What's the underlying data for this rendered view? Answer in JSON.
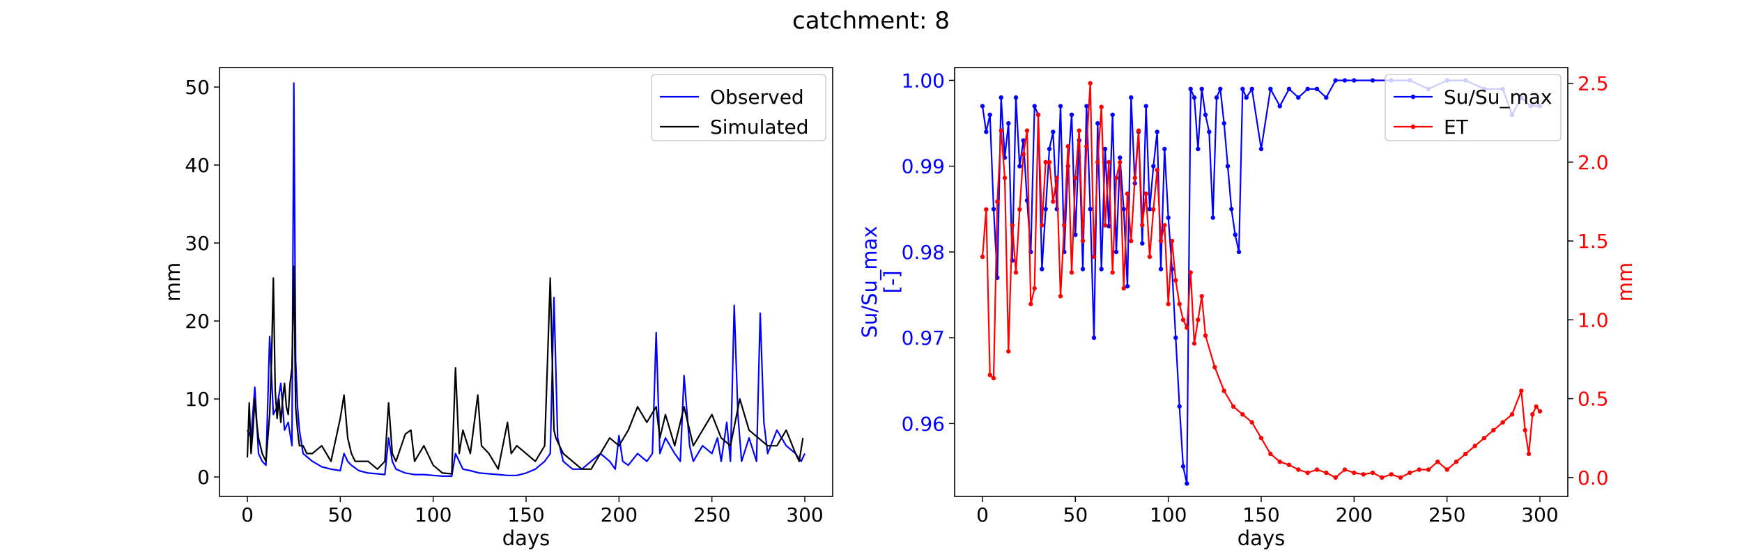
{
  "figure": {
    "title": "catchment: 8"
  },
  "chart_data": [
    {
      "type": "line",
      "title": "",
      "xlabel": "days",
      "ylabel": "mm",
      "xlim": [
        -15,
        315
      ],
      "ylim": [
        -2.5,
        52.5
      ],
      "xticks": [
        0,
        50,
        100,
        150,
        200,
        250,
        300
      ],
      "yticks": [
        0,
        10,
        20,
        30,
        40,
        50
      ],
      "legend_position": "top-right",
      "series": [
        {
          "name": "Observed",
          "color": "#0000ff",
          "x": [
            0,
            2,
            4,
            6,
            8,
            10,
            12,
            14,
            16,
            18,
            20,
            22,
            24,
            25,
            26,
            27,
            28,
            30,
            35,
            40,
            45,
            50,
            52,
            54,
            56,
            60,
            65,
            70,
            74,
            76,
            78,
            80,
            85,
            90,
            95,
            100,
            105,
            110,
            112,
            114,
            116,
            120,
            125,
            130,
            135,
            140,
            145,
            150,
            155,
            160,
            163,
            165,
            167,
            170,
            175,
            180,
            185,
            190,
            195,
            198,
            200,
            202,
            205,
            210,
            215,
            218,
            220,
            222,
            225,
            230,
            233,
            235,
            238,
            240,
            245,
            250,
            253,
            255,
            258,
            260,
            262,
            264,
            266,
            270,
            274,
            276,
            278,
            280,
            285,
            290,
            295,
            298,
            300
          ],
          "y": [
            6,
            5,
            11.5,
            3,
            2,
            1.5,
            18,
            8,
            9,
            12,
            6,
            7,
            4,
            50.5,
            15,
            9,
            6,
            3,
            2,
            1.3,
            1,
            0.8,
            3,
            2,
            1.5,
            0.8,
            0.5,
            0.4,
            0.3,
            5,
            2,
            1,
            0.5,
            0.3,
            0.3,
            0.2,
            0.1,
            0.1,
            3,
            2,
            1,
            0.8,
            0.5,
            0.4,
            0.3,
            0.2,
            0.2,
            0.5,
            1,
            2,
            3,
            23,
            5,
            2,
            1,
            1,
            2,
            3,
            2,
            1,
            5.3,
            2,
            1.5,
            3,
            2,
            3,
            18.5,
            3,
            5,
            3,
            2,
            13,
            4,
            2,
            4,
            3,
            5,
            2,
            7,
            2,
            22,
            8,
            2,
            5,
            2,
            21,
            7,
            3,
            6,
            4,
            3,
            2,
            3
          ]
        },
        {
          "name": "Simulated",
          "color": "#000000",
          "x": [
            0,
            1,
            2,
            3,
            4,
            5,
            6,
            8,
            10,
            12,
            13,
            14,
            15,
            16,
            17,
            18,
            19,
            20,
            21,
            22,
            23,
            24,
            25,
            26,
            27,
            28,
            30,
            32,
            35,
            40,
            45,
            50,
            52,
            54,
            56,
            58,
            60,
            65,
            70,
            74,
            76,
            78,
            80,
            85,
            88,
            90,
            95,
            100,
            105,
            110,
            112,
            114,
            116,
            120,
            124,
            126,
            130,
            135,
            140,
            142,
            145,
            150,
            155,
            160,
            163,
            165,
            166,
            168,
            170,
            175,
            180,
            185,
            190,
            195,
            200,
            205,
            210,
            215,
            220,
            222,
            225,
            230,
            235,
            240,
            245,
            250,
            255,
            260,
            265,
            270,
            275,
            280,
            285,
            290,
            295,
            297,
            299
          ],
          "y": [
            2.5,
            9.5,
            3,
            6,
            10,
            7,
            5,
            3,
            2,
            8,
            15,
            25.5,
            11,
            7.5,
            10,
            7,
            10,
            12,
            9,
            8,
            12,
            14,
            27,
            9,
            6,
            4,
            4,
            3,
            3,
            4,
            2,
            7.5,
            10.5,
            5,
            3,
            2,
            2,
            2,
            1,
            2,
            9.5,
            3,
            2,
            5.5,
            6,
            2,
            4,
            1.5,
            0.5,
            0.4,
            14,
            3,
            6,
            3,
            10.5,
            4,
            3,
            1,
            7,
            3,
            4,
            3,
            2,
            4,
            25.5,
            6,
            5,
            4,
            3,
            2,
            1,
            1,
            3,
            5,
            4,
            6,
            9,
            7,
            9,
            5,
            8,
            4,
            9,
            4,
            6,
            8,
            5,
            4,
            10,
            6,
            5,
            4,
            4,
            6,
            3,
            2,
            5
          ]
        }
      ]
    },
    {
      "type": "line",
      "title": "",
      "xlabel": "days",
      "ylabel": "Su/Su_max\n[-]",
      "ylabel_color": "#0000ff",
      "xlim": [
        -15,
        315
      ],
      "ylim": [
        0.9515,
        1.0015
      ],
      "xticks": [
        0,
        50,
        100,
        150,
        200,
        250,
        300
      ],
      "yticks": [
        0.96,
        0.97,
        0.98,
        0.99,
        1.0
      ],
      "y2label": "mm",
      "y2label_color": "#ff0000",
      "y2lim": [
        -0.12,
        2.6
      ],
      "y2ticks": [
        0.0,
        0.5,
        1.0,
        1.5,
        2.0,
        2.5
      ],
      "legend_position": "top-right",
      "series": [
        {
          "name": "Su/Su_max",
          "color": "#0000ff",
          "axis": "left",
          "x": [
            0,
            2,
            4,
            6,
            8,
            10,
            12,
            14,
            16,
            18,
            20,
            22,
            24,
            26,
            28,
            30,
            32,
            34,
            36,
            38,
            40,
            42,
            44,
            46,
            48,
            50,
            52,
            54,
            56,
            58,
            60,
            62,
            64,
            66,
            68,
            70,
            72,
            74,
            76,
            78,
            80,
            82,
            84,
            86,
            88,
            90,
            92,
            94,
            96,
            98,
            100,
            102,
            104,
            106,
            108,
            110,
            112,
            114,
            116,
            118,
            120,
            122,
            124,
            126,
            128,
            130,
            132,
            134,
            136,
            138,
            140,
            142,
            145,
            150,
            155,
            160,
            165,
            170,
            175,
            180,
            185,
            190,
            195,
            200,
            210,
            220,
            230,
            240,
            250,
            260,
            270,
            280,
            285,
            290,
            295,
            300
          ],
          "y": [
            0.997,
            0.994,
            0.996,
            0.985,
            0.977,
            0.998,
            0.991,
            0.995,
            0.979,
            0.998,
            0.99,
            0.993,
            0.986,
            0.98,
            0.997,
            0.996,
            0.978,
            0.985,
            0.992,
            0.994,
            0.985,
            0.997,
            0.98,
            0.99,
            0.996,
            0.982,
            0.993,
            0.978,
            0.997,
            0.985,
            0.97,
            0.995,
            0.978,
            0.992,
            0.983,
            0.996,
            0.98,
            0.991,
            0.985,
            0.976,
            0.998,
            0.988,
            0.994,
            0.981,
            0.997,
            0.985,
            0.99,
            0.994,
            0.978,
            0.992,
            0.984,
            0.978,
            0.97,
            0.962,
            0.955,
            0.953,
            0.999,
            0.998,
            0.992,
            0.999,
            0.996,
            0.994,
            0.984,
            0.998,
            0.999,
            0.995,
            0.99,
            0.985,
            0.982,
            0.98,
            0.999,
            0.998,
            0.999,
            0.992,
            0.999,
            0.997,
            0.999,
            0.998,
            0.999,
            0.999,
            0.998,
            1.0,
            1.0,
            1.0,
            1.0,
            1.0,
            1.0,
            0.999,
            1.0,
            1.0,
            0.999,
            0.999,
            0.996,
            0.998,
            0.997,
            0.997
          ]
        },
        {
          "name": "ET",
          "color": "#ff0000",
          "axis": "right",
          "x": [
            0,
            2,
            4,
            6,
            8,
            10,
            12,
            14,
            16,
            18,
            20,
            22,
            24,
            26,
            28,
            30,
            32,
            34,
            36,
            38,
            40,
            42,
            44,
            46,
            48,
            50,
            52,
            54,
            56,
            58,
            60,
            62,
            64,
            66,
            68,
            70,
            72,
            74,
            76,
            78,
            80,
            82,
            84,
            86,
            88,
            90,
            92,
            94,
            96,
            98,
            100,
            102,
            104,
            106,
            108,
            110,
            112,
            114,
            116,
            118,
            120,
            125,
            130,
            135,
            140,
            145,
            150,
            155,
            160,
            165,
            170,
            175,
            180,
            185,
            190,
            195,
            200,
            205,
            210,
            215,
            220,
            225,
            230,
            235,
            240,
            245,
            250,
            255,
            260,
            265,
            270,
            275,
            280,
            285,
            290,
            292,
            294,
            296,
            298,
            300
          ],
          "y": [
            1.4,
            1.7,
            0.65,
            0.63,
            1.75,
            2.2,
            1.9,
            0.8,
            1.6,
            1.3,
            1.7,
            2.05,
            2.2,
            1.1,
            1.2,
            2.3,
            1.6,
            2.0,
            2.0,
            1.75,
            1.9,
            1.15,
            1.6,
            2.1,
            1.3,
            1.9,
            2.2,
            1.5,
            2.1,
            2.5,
            1.4,
            2.0,
            2.35,
            1.6,
            2.0,
            1.3,
            1.9,
            2.0,
            1.2,
            1.8,
            1.5,
            1.9,
            2.2,
            1.6,
            1.8,
            1.4,
            1.7,
            1.95,
            1.5,
            1.6,
            1.1,
            1.5,
            1.25,
            1.1,
            1.0,
            0.95,
            1.3,
            0.85,
            1.0,
            1.15,
            0.9,
            0.7,
            0.55,
            0.45,
            0.4,
            0.35,
            0.25,
            0.15,
            0.1,
            0.08,
            0.05,
            0.03,
            0.05,
            0.03,
            0.0,
            0.05,
            0.03,
            0.02,
            0.03,
            0.0,
            0.02,
            0.0,
            0.03,
            0.05,
            0.05,
            0.1,
            0.05,
            0.1,
            0.15,
            0.2,
            0.25,
            0.3,
            0.35,
            0.4,
            0.55,
            0.3,
            0.15,
            0.4,
            0.45,
            0.42
          ]
        }
      ]
    }
  ]
}
